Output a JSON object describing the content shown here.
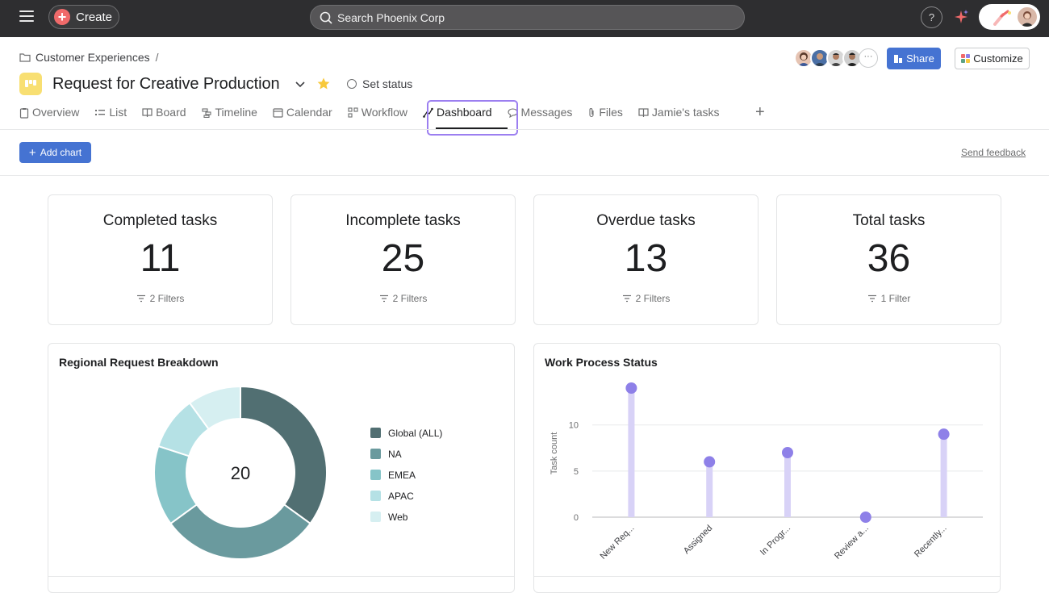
{
  "topbar": {
    "create_label": "Create",
    "search_placeholder": "Search Phoenix Corp",
    "help_label": "?"
  },
  "header": {
    "breadcrumb": "Customer Experiences",
    "breadcrumb_sep": "/",
    "title": "Request for Creative Production",
    "set_status": "Set status",
    "more_members": "···",
    "share_label": "Share",
    "customize_label": "Customize"
  },
  "tabs": [
    {
      "label": "Overview",
      "icon": "overview-icon"
    },
    {
      "label": "List",
      "icon": "list-icon"
    },
    {
      "label": "Board",
      "icon": "board-icon"
    },
    {
      "label": "Timeline",
      "icon": "timeline-icon"
    },
    {
      "label": "Calendar",
      "icon": "calendar-icon"
    },
    {
      "label": "Workflow",
      "icon": "workflow-icon"
    },
    {
      "label": "Dashboard",
      "icon": "dashboard-icon",
      "active": true
    },
    {
      "label": "Messages",
      "icon": "messages-icon"
    },
    {
      "label": "Files",
      "icon": "files-icon"
    },
    {
      "label": "Jamie's tasks",
      "icon": "tasks-icon"
    }
  ],
  "toolbar": {
    "add_chart": "Add chart",
    "send_feedback": "Send feedback"
  },
  "stats": [
    {
      "title": "Completed tasks",
      "value": "11",
      "filter": "2 Filters"
    },
    {
      "title": "Incomplete tasks",
      "value": "25",
      "filter": "2 Filters"
    },
    {
      "title": "Overdue tasks",
      "value": "13",
      "filter": "2 Filters"
    },
    {
      "title": "Total tasks",
      "value": "36",
      "filter": "1 Filter"
    }
  ],
  "colors": {
    "accent": "#4573d2",
    "topbar": "#2e2e30",
    "focus_ring": "#9c7ff0",
    "lollipop_dot": "#8e80e8",
    "lollipop_stem": "#d8d2f7"
  },
  "charts": {
    "donut": {
      "title": "Regional Request Breakdown",
      "center_label": "20"
    },
    "lollipop": {
      "title": "Work Process Status"
    }
  },
  "chart_data": [
    {
      "type": "pie",
      "title": "Regional Request Breakdown",
      "total": 20,
      "categories": [
        "Global (ALL)",
        "NA",
        "EMEA",
        "APAC",
        "Web"
      ],
      "values": [
        7,
        6,
        3,
        2,
        2
      ],
      "colors": [
        "#516f72",
        "#6a9a9e",
        "#86c4c8",
        "#b5e1e5",
        "#d6eff1"
      ],
      "legend": "right"
    },
    {
      "type": "scatter",
      "title": "Work Process Status",
      "categories": [
        "New Req...",
        "Assigned",
        "In Progr...",
        "Review a...",
        "Recently..."
      ],
      "values": [
        14,
        6,
        7,
        0,
        9
      ],
      "ylabel": "Task count",
      "yticks": [
        0,
        5,
        10
      ],
      "ylim": [
        0,
        14
      ],
      "grid": true
    }
  ]
}
